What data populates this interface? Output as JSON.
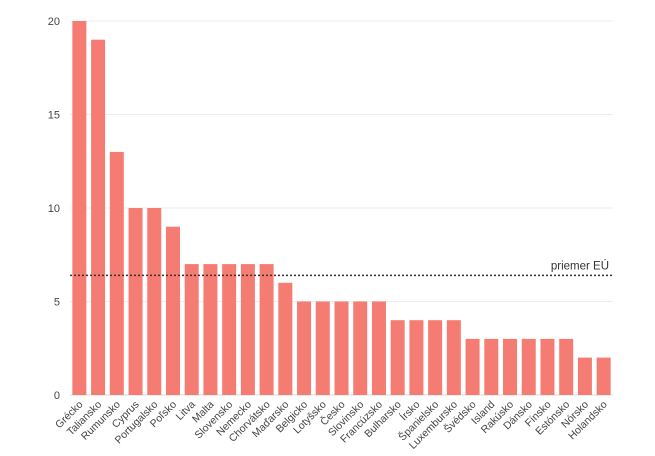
{
  "chart_data": {
    "type": "bar",
    "categories": [
      "Grécko",
      "Taliansko",
      "Rumunsko",
      "Cyprus",
      "Portugalsko",
      "Poľsko",
      "Litva",
      "Malta",
      "Slovensko",
      "Nemecko",
      "Chorvátsko",
      "Maďarsko",
      "Belgicko",
      "Lotyšsko",
      "Česko",
      "Slovinsko",
      "Francúzsko",
      "Bulharsko",
      "Írsko",
      "Španielsko",
      "Luxembursko",
      "Švédsko",
      "Island",
      "Rakúsko",
      "Dánsko",
      "Fínsko",
      "Estónsko",
      "Nórsko",
      "Holandsko"
    ],
    "values": [
      20,
      19,
      13,
      10,
      10,
      9,
      7,
      7,
      7,
      7,
      7,
      6,
      5,
      5,
      5,
      5,
      5,
      4,
      4,
      4,
      4,
      3,
      3,
      3,
      3,
      3,
      3,
      2,
      2
    ],
    "ylim": [
      0,
      20
    ],
    "yticks": [
      0,
      5,
      10,
      15,
      20
    ],
    "grid": true,
    "bar_color": "#f47c73",
    "reference_line": {
      "value": 6.4,
      "label": "priemer EÚ",
      "color": "#333333"
    }
  }
}
